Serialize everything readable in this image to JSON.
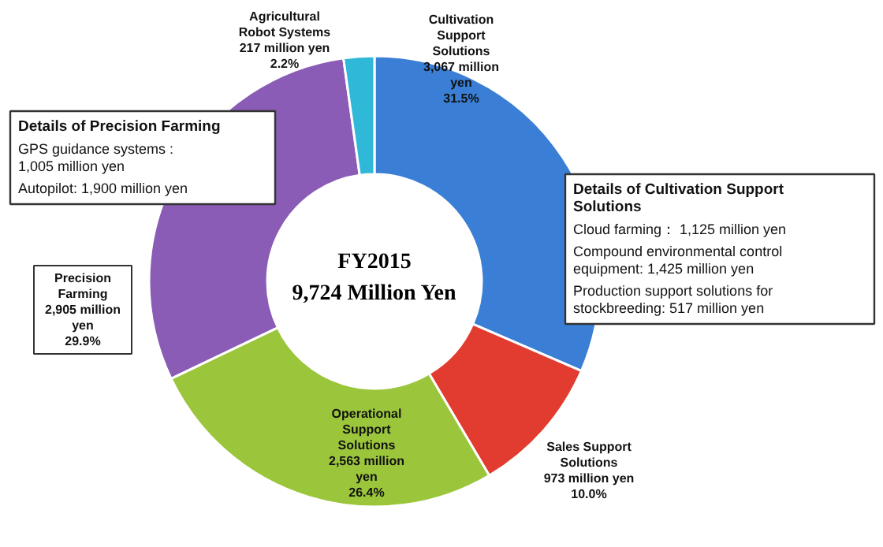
{
  "chart_data": {
    "type": "donut",
    "title": "FY2015",
    "subtitle": "9,724 Million Yen",
    "categories": [
      "Cultivation Support Solutions",
      "Sales Support Solutions",
      "Operational Support Solutions",
      "Precision Farming",
      "Agricultural Robot Systems"
    ],
    "values": [
      31.5,
      10.0,
      26.4,
      29.9,
      2.2
    ],
    "colors": [
      "#3a7fd5",
      "#e23b2f",
      "#9bc63c",
      "#8a5cb5",
      "#2fb8d8"
    ],
    "value_labels": [
      "3,067 million\nyen\n31.5%",
      "973 million yen\n10.0%",
      "2,563 million\nyen\n26.4%",
      "2,905 million\nyen\n29.9%",
      "217 million yen\n2.2%"
    ],
    "annotations": [
      "Details of Precision Farming",
      "GPS guidance systems :\n             1,005 million yen",
      "Autopilot: 1,900 million yen",
      "Details of Cultivation Support\nSolutions",
      "Cloud farming： 1,125 million yen",
      "Compound environmental control\nequipment: 1,425 million yen",
      "Production support solutions for\nstockbreeding:   517 million yen"
    ]
  }
}
